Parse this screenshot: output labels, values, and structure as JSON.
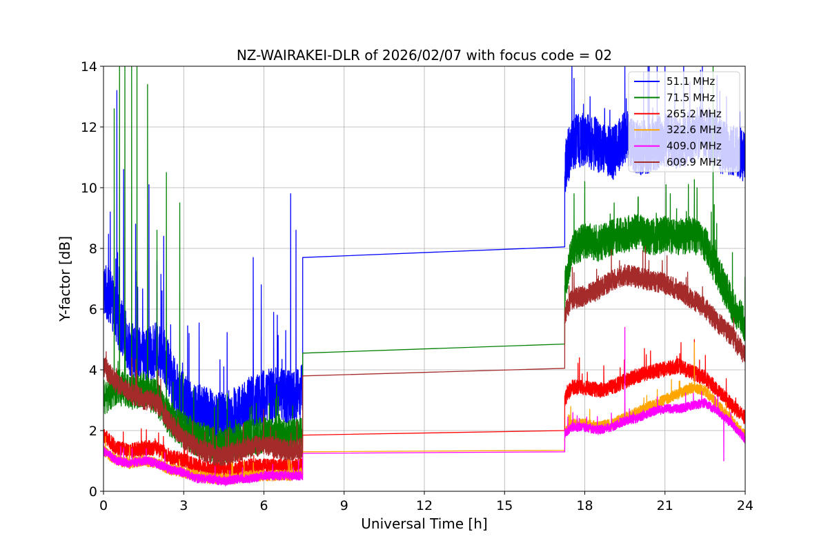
{
  "chart_data": {
    "type": "line",
    "title": "NZ-WAIRAKEI-DLR of 2026/02/07 with focus code = 02",
    "xlabel": "Universal Time [h]",
    "ylabel": "Y-factor [dB]",
    "xlim": [
      0,
      24
    ],
    "ylim": [
      0,
      14
    ],
    "xticks": [
      0,
      3,
      6,
      9,
      12,
      15,
      18,
      21,
      24
    ],
    "xtick_labels": [
      "0",
      "3",
      "6",
      "9",
      "12",
      "15",
      "18",
      "21",
      "24"
    ],
    "yticks": [
      0,
      2,
      4,
      6,
      8,
      10,
      12,
      14
    ],
    "ytick_labels": [
      "0",
      "2",
      "4",
      "6",
      "8",
      "10",
      "12",
      "14"
    ],
    "grid": true,
    "legend_position": "top-right",
    "gap": [
      7.45,
      17.25
    ],
    "series": [
      {
        "name": "51.1 MHz",
        "label": "  51.1 MHz",
        "color": "#0000ff",
        "points": [
          [
            0,
            6.6
          ],
          [
            0.3,
            6.2
          ],
          [
            0.6,
            5.4
          ],
          [
            1,
            4.6
          ],
          [
            1.5,
            4.3
          ],
          [
            2,
            4.6
          ],
          [
            2.3,
            4.3
          ],
          [
            2.7,
            3.3
          ],
          [
            3,
            2.9
          ],
          [
            3.5,
            2.6
          ],
          [
            4,
            2.4
          ],
          [
            4.5,
            2.3
          ],
          [
            5,
            2.5
          ],
          [
            5.5,
            2.8
          ],
          [
            6,
            3.0
          ],
          [
            6.5,
            3.1
          ],
          [
            7,
            3.0
          ],
          [
            7.45,
            3.2
          ],
          [
            7.45,
            7.7
          ],
          [
            17.25,
            8.05
          ],
          [
            17.25,
            10.5
          ],
          [
            17.5,
            11.4
          ],
          [
            18,
            11.5
          ],
          [
            18.5,
            11.3
          ],
          [
            19,
            11.0
          ],
          [
            19.5,
            11.6
          ],
          [
            20,
            11.2
          ],
          [
            20.5,
            11.3
          ],
          [
            21,
            11.5
          ],
          [
            21.5,
            11.4
          ],
          [
            22,
            11.6
          ],
          [
            22.5,
            11.8
          ],
          [
            23,
            11.3
          ],
          [
            23.5,
            11.2
          ],
          [
            24,
            10.9
          ]
        ],
        "noise": 0.9,
        "spikes": [
          [
            0.25,
            9.2
          ],
          [
            0.5,
            13.2
          ],
          [
            0.75,
            10.6
          ],
          [
            1.2,
            8.8
          ],
          [
            1.7,
            10.1
          ],
          [
            2.0,
            7.6
          ],
          [
            2.25,
            8.4
          ],
          [
            3.2,
            5.2
          ],
          [
            4.5,
            4.1
          ],
          [
            5.6,
            7.7
          ],
          [
            5.9,
            6.8
          ],
          [
            6.5,
            5.8
          ],
          [
            7.0,
            9.8
          ],
          [
            7.2,
            8.6
          ],
          [
            17.6,
            13.6
          ],
          [
            18.2,
            13.0
          ],
          [
            19.5,
            14.0
          ],
          [
            20.2,
            13.8
          ],
          [
            21.0,
            14.0
          ],
          [
            21.7,
            14.0
          ],
          [
            22.4,
            14.0
          ],
          [
            23.3,
            13.0
          ],
          [
            23.8,
            12.5
          ]
        ]
      },
      {
        "name": "71.5 MHz",
        "label": "  71.5 MHz",
        "color": "#008000",
        "points": [
          [
            0,
            3.0
          ],
          [
            0.5,
            3.4
          ],
          [
            1,
            3.2
          ],
          [
            1.5,
            3.3
          ],
          [
            2,
            3.0
          ],
          [
            2.5,
            2.3
          ],
          [
            3,
            1.9
          ],
          [
            3.5,
            1.7
          ],
          [
            4,
            1.5
          ],
          [
            4.5,
            1.4
          ],
          [
            5,
            1.6
          ],
          [
            5.5,
            1.7
          ],
          [
            6,
            1.8
          ],
          [
            6.5,
            1.8
          ],
          [
            7,
            1.7
          ],
          [
            7.45,
            1.8
          ],
          [
            7.45,
            4.55
          ],
          [
            17.25,
            4.85
          ],
          [
            17.25,
            6.6
          ],
          [
            17.5,
            7.9
          ],
          [
            18,
            8.2
          ],
          [
            18.5,
            8.1
          ],
          [
            19,
            8.3
          ],
          [
            19.5,
            8.4
          ],
          [
            20,
            8.5
          ],
          [
            20.5,
            8.3
          ],
          [
            21,
            8.4
          ],
          [
            21.5,
            8.3
          ],
          [
            22,
            8.4
          ],
          [
            22.5,
            8.1
          ],
          [
            23,
            7.1
          ],
          [
            23.5,
            6.1
          ],
          [
            24,
            5.4
          ]
        ],
        "noise": 0.6,
        "spikes": [
          [
            0.4,
            12.6
          ],
          [
            0.6,
            14.0
          ],
          [
            0.8,
            14.0
          ],
          [
            1.05,
            14.0
          ],
          [
            1.25,
            14.0
          ],
          [
            1.65,
            13.4
          ],
          [
            2.0,
            8.6
          ],
          [
            2.35,
            10.5
          ],
          [
            2.85,
            9.5
          ],
          [
            6.2,
            2.9
          ],
          [
            17.6,
            9.8
          ],
          [
            18.0,
            10.2
          ],
          [
            19.1,
            9.5
          ],
          [
            20.0,
            9.7
          ],
          [
            21.2,
            9.8
          ],
          [
            22.2,
            10.0
          ],
          [
            22.8,
            14.0
          ]
        ]
      },
      {
        "name": "265.2 MHz",
        "label": "  265.2 MHz",
        "color": "#ff0000",
        "points": [
          [
            0,
            1.8
          ],
          [
            0.5,
            1.4
          ],
          [
            1,
            1.3
          ],
          [
            1.5,
            1.4
          ],
          [
            2,
            1.4
          ],
          [
            2.5,
            1.1
          ],
          [
            3,
            1.0
          ],
          [
            3.5,
            0.8
          ],
          [
            4,
            0.7
          ],
          [
            4.5,
            0.7
          ],
          [
            5,
            0.7
          ],
          [
            5.5,
            0.8
          ],
          [
            6,
            0.8
          ],
          [
            6.5,
            0.8
          ],
          [
            7,
            0.8
          ],
          [
            7.45,
            0.8
          ],
          [
            7.45,
            1.85
          ],
          [
            17.25,
            2.0
          ],
          [
            17.25,
            3.0
          ],
          [
            17.5,
            3.4
          ],
          [
            18,
            3.4
          ],
          [
            18.5,
            3.3
          ],
          [
            19,
            3.4
          ],
          [
            19.5,
            3.6
          ],
          [
            20,
            3.8
          ],
          [
            20.5,
            3.9
          ],
          [
            21,
            4.0
          ],
          [
            21.5,
            4.1
          ],
          [
            22,
            3.9
          ],
          [
            22.5,
            3.7
          ],
          [
            23,
            3.3
          ],
          [
            23.5,
            2.8
          ],
          [
            24,
            2.4
          ]
        ],
        "noise": 0.25,
        "spikes": [
          [
            17.8,
            4.4
          ],
          [
            20.3,
            4.5
          ],
          [
            21.6,
            4.9
          ],
          [
            22.1,
            5.0
          ]
        ]
      },
      {
        "name": "322.6 MHz",
        "label": "  322.6 MHz",
        "color": "#ffa500",
        "points": [
          [
            0,
            1.3
          ],
          [
            0.5,
            1.0
          ],
          [
            1,
            0.9
          ],
          [
            1.5,
            1.0
          ],
          [
            2,
            0.9
          ],
          [
            2.5,
            0.7
          ],
          [
            3,
            0.6
          ],
          [
            3.5,
            0.5
          ],
          [
            4,
            0.4
          ],
          [
            4.5,
            0.4
          ],
          [
            5,
            0.4
          ],
          [
            5.5,
            0.5
          ],
          [
            6,
            0.5
          ],
          [
            6.5,
            0.5
          ],
          [
            7,
            0.5
          ],
          [
            7.45,
            0.6
          ],
          [
            7.45,
            1.3
          ],
          [
            17.25,
            1.35
          ],
          [
            17.25,
            1.9
          ],
          [
            17.5,
            2.2
          ],
          [
            18,
            2.2
          ],
          [
            18.5,
            2.1
          ],
          [
            19,
            2.2
          ],
          [
            19.5,
            2.4
          ],
          [
            20,
            2.6
          ],
          [
            20.5,
            2.8
          ],
          [
            21,
            3.0
          ],
          [
            21.5,
            3.2
          ],
          [
            22,
            3.4
          ],
          [
            22.5,
            3.3
          ],
          [
            23,
            2.8
          ],
          [
            23.5,
            2.3
          ],
          [
            24,
            1.8
          ]
        ],
        "noise": 0.18,
        "spikes": [
          [
            22.1,
            4.9
          ],
          [
            19.5,
            2.9
          ]
        ]
      },
      {
        "name": "409.0 MHz",
        "label": "  409.0 MHz",
        "color": "#ff00ff",
        "points": [
          [
            0,
            1.3
          ],
          [
            0.5,
            1.0
          ],
          [
            1,
            0.9
          ],
          [
            1.5,
            1.0
          ],
          [
            2,
            0.9
          ],
          [
            2.5,
            0.7
          ],
          [
            3,
            0.6
          ],
          [
            3.5,
            0.4
          ],
          [
            4,
            0.4
          ],
          [
            4.5,
            0.3
          ],
          [
            5,
            0.4
          ],
          [
            5.5,
            0.4
          ],
          [
            6,
            0.5
          ],
          [
            6.5,
            0.5
          ],
          [
            7,
            0.5
          ],
          [
            7.45,
            0.5
          ],
          [
            7.45,
            1.25
          ],
          [
            17.25,
            1.3
          ],
          [
            17.25,
            1.9
          ],
          [
            17.5,
            2.1
          ],
          [
            18,
            2.1
          ],
          [
            18.5,
            2.0
          ],
          [
            19,
            2.1
          ],
          [
            19.5,
            2.3
          ],
          [
            20,
            2.4
          ],
          [
            20.5,
            2.6
          ],
          [
            21,
            2.7
          ],
          [
            21.5,
            2.7
          ],
          [
            22,
            2.8
          ],
          [
            22.5,
            2.9
          ],
          [
            23,
            2.6
          ],
          [
            23.5,
            2.2
          ],
          [
            24,
            1.7
          ]
        ],
        "noise": 0.15,
        "spikes": [
          [
            19.5,
            5.4
          ],
          [
            23.2,
            1.0
          ]
        ]
      },
      {
        "name": "609.9 MHz",
        "label": "  609.9 MHz",
        "color": "#a52a2a",
        "points": [
          [
            0,
            4.1
          ],
          [
            0.5,
            3.5
          ],
          [
            1,
            3.2
          ],
          [
            1.5,
            3.0
          ],
          [
            2,
            2.9
          ],
          [
            2.5,
            2.2
          ],
          [
            3,
            1.7
          ],
          [
            3.5,
            1.4
          ],
          [
            4,
            1.2
          ],
          [
            4.5,
            1.1
          ],
          [
            5,
            1.3
          ],
          [
            5.5,
            1.4
          ],
          [
            6,
            1.5
          ],
          [
            6.5,
            1.4
          ],
          [
            7,
            1.3
          ],
          [
            7.45,
            1.4
          ],
          [
            7.45,
            3.8
          ],
          [
            17.25,
            4.05
          ],
          [
            17.25,
            5.8
          ],
          [
            17.5,
            6.3
          ],
          [
            18,
            6.4
          ],
          [
            18.5,
            6.6
          ],
          [
            19,
            6.9
          ],
          [
            19.5,
            7.1
          ],
          [
            20,
            7.0
          ],
          [
            20.5,
            6.9
          ],
          [
            21,
            6.8
          ],
          [
            21.5,
            6.6
          ],
          [
            22,
            6.3
          ],
          [
            22.5,
            6.0
          ],
          [
            23,
            5.5
          ],
          [
            23.5,
            5.1
          ],
          [
            24,
            4.4
          ]
        ],
        "noise": 0.35,
        "spikes": [
          [
            0.1,
            4.6
          ],
          [
            17.6,
            7.2
          ],
          [
            19.3,
            7.6
          ],
          [
            20.4,
            7.6
          ]
        ]
      }
    ]
  }
}
